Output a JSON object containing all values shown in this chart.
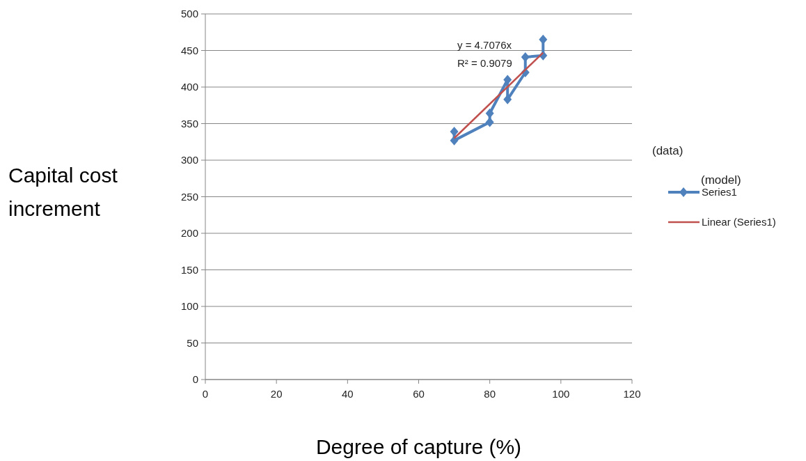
{
  "chart_data": {
    "type": "line",
    "xlabel": "Degree of capture (%)",
    "ylabel": "Capital cost increment",
    "series": [
      {
        "name": "Series1",
        "color": "#4f81bd",
        "x": [
          70,
          70,
          80,
          80,
          85,
          85,
          90,
          90,
          95,
          95
        ],
        "values": [
          339,
          327,
          352,
          364,
          410,
          383,
          420,
          441,
          443,
          465
        ],
        "marker": "diamond"
      },
      {
        "name": "Linear (Series1)",
        "color": "#c0504d",
        "type": "line",
        "x": [
          70,
          95
        ],
        "values": [
          330,
          447
        ],
        "marker": "none"
      }
    ],
    "xlim": [
      0,
      120
    ],
    "xticks": [
      0,
      20,
      40,
      60,
      80,
      100,
      120
    ],
    "ylim": [
      0,
      500
    ],
    "yticks": [
      0,
      50,
      100,
      150,
      200,
      250,
      300,
      350,
      400,
      450,
      500
    ],
    "grid": "y",
    "legend": "right",
    "annotations": [
      "y = 4.7076x",
      "R² = 0.9079",
      "(data)",
      "(model)"
    ]
  }
}
